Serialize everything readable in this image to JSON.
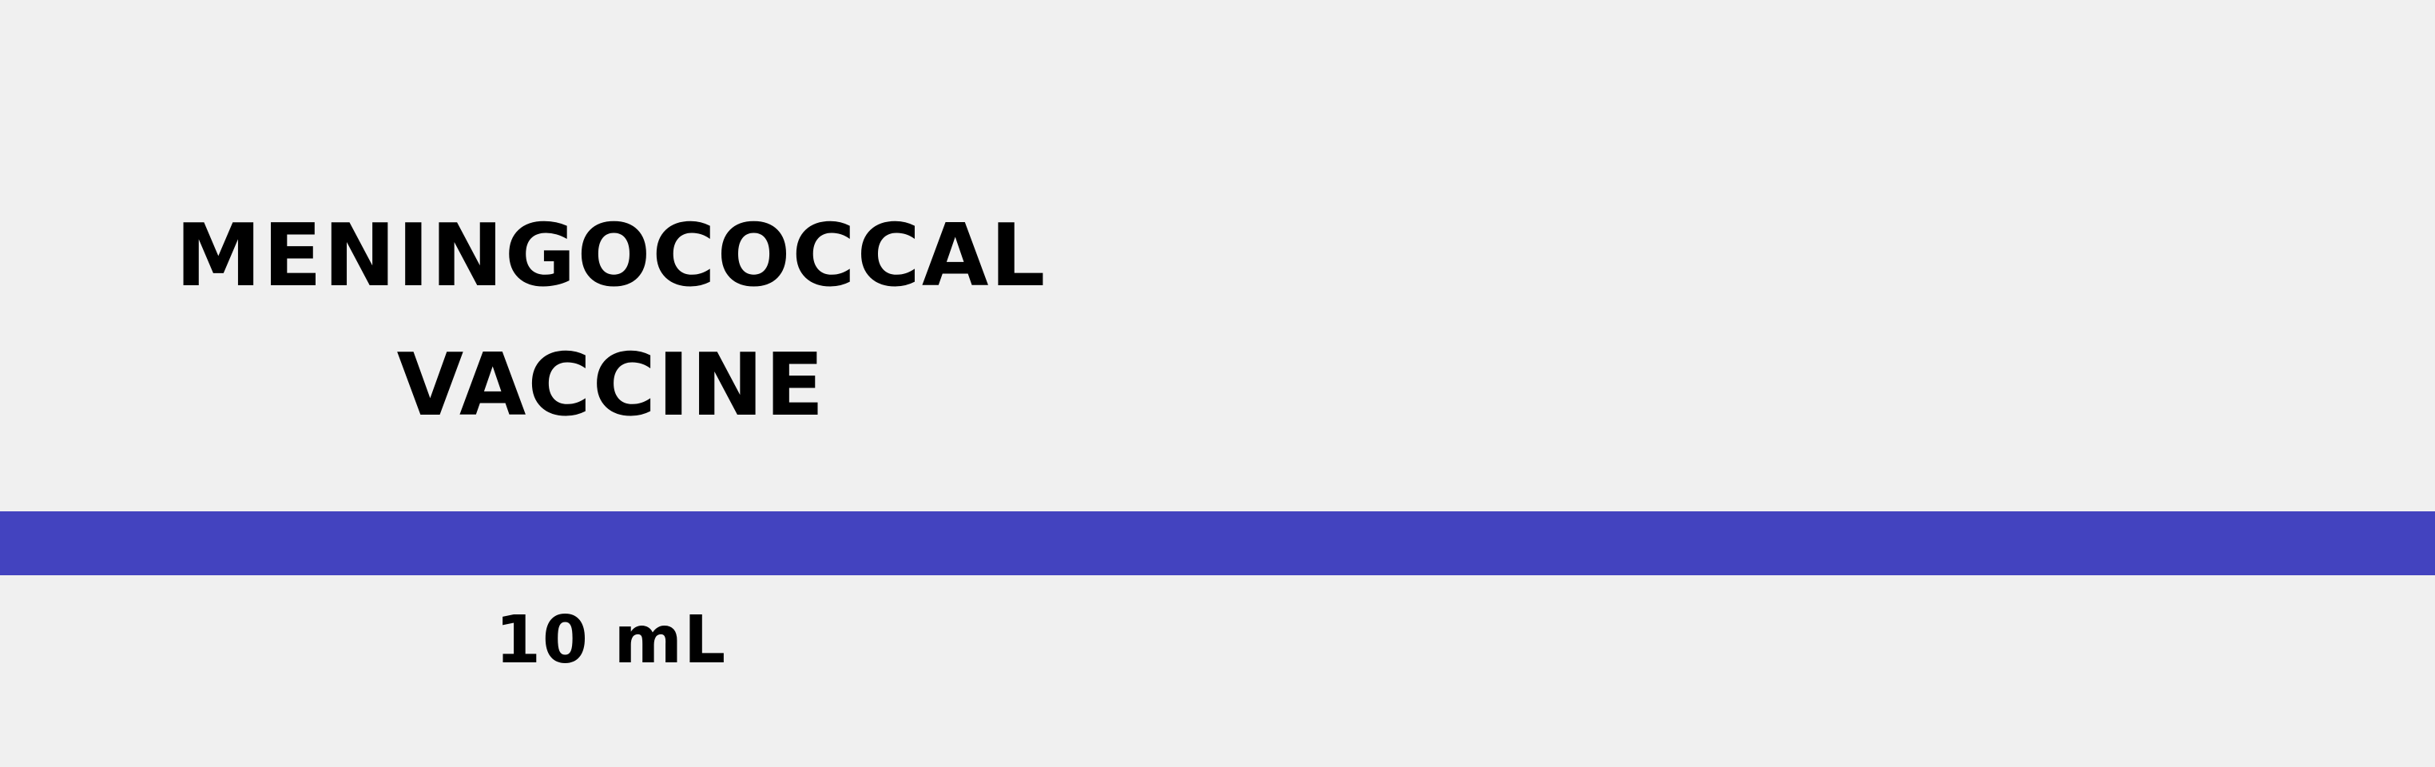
{
  "label": {
    "name_line_1": "MENINGOCOCCAL",
    "name_line_2": "VACCINE",
    "volume": "10 mL"
  },
  "colors": {
    "background": "#f0f0f0",
    "band": "#4343bf",
    "text": "#000000"
  }
}
